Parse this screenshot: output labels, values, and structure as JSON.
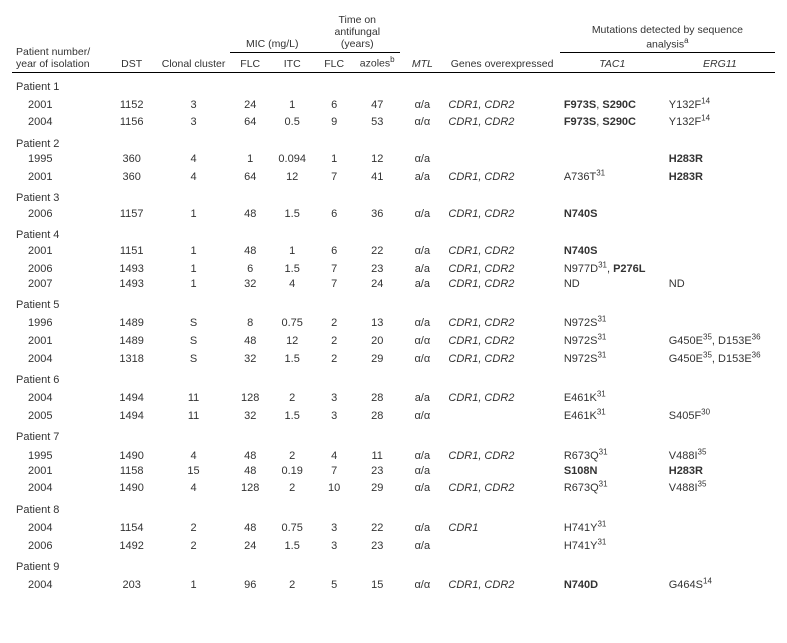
{
  "headers": {
    "patient": "Patient number/\nyear of isolation",
    "dst": "DST",
    "clonal": "Clonal cluster",
    "mic_group": "MIC (mg/L)",
    "mic_flc": "FLC",
    "mic_itc": "ITC",
    "time_group": "Time on\nantifungal\n(years)",
    "time_flc": "FLC",
    "time_azoles": "azoles",
    "time_azoles_sup": "b",
    "mtl": "MTL",
    "genes": "Genes overexpressed",
    "mut_group": "Mutations detected by sequence\nanalysis",
    "mut_group_sup": "a",
    "tac1": "TAC1",
    "erg11": "ERG11"
  },
  "patients": [
    {
      "label": "Patient 1",
      "rows": [
        {
          "year": "2001",
          "dst": "1152",
          "clonal": "3",
          "flc": "24",
          "itc": "1",
          "tflc": "6",
          "taz": "47",
          "mtl": "α/a",
          "genes": "CDR1, CDR2",
          "tac1": [
            {
              "t": "F973S",
              "b": true
            },
            {
              "t": ", "
            },
            {
              "t": "S290C",
              "b": true
            }
          ],
          "erg11": [
            {
              "t": "Y132F"
            },
            {
              "sup": "14"
            }
          ]
        },
        {
          "year": "2004",
          "dst": "1156",
          "clonal": "3",
          "flc": "64",
          "itc": "0.5",
          "tflc": "9",
          "taz": "53",
          "mtl": "α/α",
          "genes": "CDR1, CDR2",
          "tac1": [
            {
              "t": "F973S",
              "b": true
            },
            {
              "t": ", "
            },
            {
              "t": "S290C",
              "b": true
            }
          ],
          "erg11": [
            {
              "t": "Y132F"
            },
            {
              "sup": "14"
            }
          ]
        }
      ]
    },
    {
      "label": "Patient 2",
      "rows": [
        {
          "year": "1995",
          "dst": "360",
          "clonal": "4",
          "flc": "1",
          "itc": "0.094",
          "tflc": "1",
          "taz": "12",
          "mtl": "α/a",
          "genes": "",
          "tac1": [],
          "erg11": [
            {
              "t": "H283R",
              "b": true
            }
          ]
        },
        {
          "year": "2001",
          "dst": "360",
          "clonal": "4",
          "flc": "64",
          "itc": "12",
          "tflc": "7",
          "taz": "41",
          "mtl": "a/a",
          "genes": "CDR1, CDR2",
          "tac1": [
            {
              "t": "A736T"
            },
            {
              "sup": "31"
            }
          ],
          "erg11": [
            {
              "t": "H283R",
              "b": true
            }
          ]
        }
      ]
    },
    {
      "label": "Patient 3",
      "rows": [
        {
          "year": "2006",
          "dst": "1157",
          "clonal": "1",
          "flc": "48",
          "itc": "1.5",
          "tflc": "6",
          "taz": "36",
          "mtl": "α/a",
          "genes": "CDR1, CDR2",
          "tac1": [
            {
              "t": "N740S",
              "b": true
            }
          ],
          "erg11": []
        }
      ]
    },
    {
      "label": "Patient 4",
      "rows": [
        {
          "year": "2001",
          "dst": "1151",
          "clonal": "1",
          "flc": "48",
          "itc": "1",
          "tflc": "6",
          "taz": "22",
          "mtl": "α/a",
          "genes": "CDR1, CDR2",
          "tac1": [
            {
              "t": "N740S",
              "b": true
            }
          ],
          "erg11": []
        },
        {
          "year": "2006",
          "dst": "1493",
          "clonal": "1",
          "flc": "6",
          "itc": "1.5",
          "tflc": "7",
          "taz": "23",
          "mtl": "a/a",
          "genes": "CDR1, CDR2",
          "tac1": [
            {
              "t": "N977D"
            },
            {
              "sup": "31"
            },
            {
              "t": ", "
            },
            {
              "t": "P276L",
              "b": true
            }
          ],
          "erg11": []
        },
        {
          "year": "2007",
          "dst": "1493",
          "clonal": "1",
          "flc": "32",
          "itc": "4",
          "tflc": "7",
          "taz": "24",
          "mtl": "a/a",
          "genes": "CDR1, CDR2",
          "tac1": [
            {
              "t": "ND"
            }
          ],
          "erg11": [
            {
              "t": "ND"
            }
          ]
        }
      ]
    },
    {
      "label": "Patient 5",
      "rows": [
        {
          "year": "1996",
          "dst": "1489",
          "clonal": "S",
          "flc": "8",
          "itc": "0.75",
          "tflc": "2",
          "taz": "13",
          "mtl": "α/a",
          "genes": "CDR1, CDR2",
          "tac1": [
            {
              "t": "N972S"
            },
            {
              "sup": "31"
            }
          ],
          "erg11": []
        },
        {
          "year": "2001",
          "dst": "1489",
          "clonal": "S",
          "flc": "48",
          "itc": "12",
          "tflc": "2",
          "taz": "20",
          "mtl": "α/α",
          "genes": "CDR1, CDR2",
          "tac1": [
            {
              "t": "N972S"
            },
            {
              "sup": "31"
            }
          ],
          "erg11": [
            {
              "t": "G450E"
            },
            {
              "sup": "35"
            },
            {
              "t": ", D153E"
            },
            {
              "sup": "36"
            }
          ]
        },
        {
          "year": "2004",
          "dst": "1318",
          "clonal": "S",
          "flc": "32",
          "itc": "1.5",
          "tflc": "2",
          "taz": "29",
          "mtl": "α/α",
          "genes": "CDR1, CDR2",
          "tac1": [
            {
              "t": "N972S"
            },
            {
              "sup": "31"
            }
          ],
          "erg11": [
            {
              "t": "G450E"
            },
            {
              "sup": "35"
            },
            {
              "t": ", D153E"
            },
            {
              "sup": "36"
            }
          ]
        }
      ]
    },
    {
      "label": "Patient 6",
      "rows": [
        {
          "year": "2004",
          "dst": "1494",
          "clonal": "11",
          "flc": "128",
          "itc": "2",
          "tflc": "3",
          "taz": "28",
          "mtl": "a/a",
          "genes": "CDR1, CDR2",
          "tac1": [
            {
              "t": "E461K"
            },
            {
              "sup": "31"
            }
          ],
          "erg11": []
        },
        {
          "year": "2005",
          "dst": "1494",
          "clonal": "11",
          "flc": "32",
          "itc": "1.5",
          "tflc": "3",
          "taz": "28",
          "mtl": "α/α",
          "genes": "",
          "tac1": [
            {
              "t": "E461K"
            },
            {
              "sup": "31"
            }
          ],
          "erg11": [
            {
              "t": "S405F"
            },
            {
              "sup": "30"
            }
          ]
        }
      ]
    },
    {
      "label": "Patient 7",
      "rows": [
        {
          "year": "1995",
          "dst": "1490",
          "clonal": "4",
          "flc": "48",
          "itc": "2",
          "tflc": "4",
          "taz": "11",
          "mtl": "α/a",
          "genes": "CDR1, CDR2",
          "tac1": [
            {
              "t": "R673Q"
            },
            {
              "sup": "31"
            }
          ],
          "erg11": [
            {
              "t": "V488I"
            },
            {
              "sup": "35"
            }
          ]
        },
        {
          "year": "2001",
          "dst": "1158",
          "clonal": "15",
          "flc": "48",
          "itc": "0.19",
          "tflc": "7",
          "taz": "23",
          "mtl": "α/a",
          "genes": "",
          "tac1": [
            {
              "t": "S108N",
              "b": true
            }
          ],
          "erg11": [
            {
              "t": "H283R",
              "b": true
            }
          ]
        },
        {
          "year": "2004",
          "dst": "1490",
          "clonal": "4",
          "flc": "128",
          "itc": "2",
          "tflc": "10",
          "taz": "29",
          "mtl": "α/a",
          "genes": "CDR1, CDR2",
          "tac1": [
            {
              "t": "R673Q"
            },
            {
              "sup": "31"
            }
          ],
          "erg11": [
            {
              "t": "V488I"
            },
            {
              "sup": "35"
            }
          ]
        }
      ]
    },
    {
      "label": "Patient 8",
      "rows": [
        {
          "year": "2004",
          "dst": "1154",
          "clonal": "2",
          "flc": "48",
          "itc": "0.75",
          "tflc": "3",
          "taz": "22",
          "mtl": "α/a",
          "genes": "CDR1",
          "tac1": [
            {
              "t": "H741Y"
            },
            {
              "sup": "31"
            }
          ],
          "erg11": []
        },
        {
          "year": "2006",
          "dst": "1492",
          "clonal": "2",
          "flc": "24",
          "itc": "1.5",
          "tflc": "3",
          "taz": "23",
          "mtl": "α/a",
          "genes": "",
          "tac1": [
            {
              "t": "H741Y"
            },
            {
              "sup": "31"
            }
          ],
          "erg11": []
        }
      ]
    },
    {
      "label": "Patient 9",
      "rows": [
        {
          "year": "2004",
          "dst": "203",
          "clonal": "1",
          "flc": "96",
          "itc": "2",
          "tflc": "5",
          "taz": "15",
          "mtl": "α/α",
          "genes": "CDR1, CDR2",
          "tac1": [
            {
              "t": "N740D",
              "b": true
            }
          ],
          "erg11": [
            {
              "t": "G464S"
            },
            {
              "sup": "14"
            }
          ]
        }
      ]
    }
  ]
}
